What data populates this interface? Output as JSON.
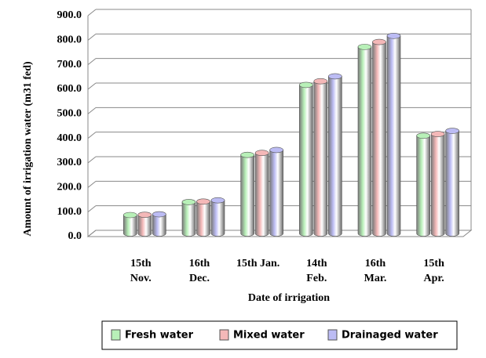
{
  "chart_data": {
    "type": "bar3d",
    "y_label": "Amount of irrigation water (m31 fed)",
    "x_label": "Date of irrigation",
    "categories": [
      "15th\nNov.",
      "16th\nDec.",
      "15th Jan.",
      "14th\nFeb.",
      "16th\nMar.",
      "15th\nApr."
    ],
    "series": [
      {
        "name": "Fresh water",
        "color": "#b8f0b8",
        "values": [
          75,
          128,
          320,
          605,
          760,
          398
        ]
      },
      {
        "name": "Mixed water",
        "color": "#f4b8b8",
        "values": [
          76,
          130,
          328,
          620,
          780,
          405
        ]
      },
      {
        "name": "Drainaged water",
        "color": "#bcbcf4",
        "values": [
          78,
          135,
          340,
          640,
          805,
          418
        ]
      }
    ],
    "ylim": [
      0,
      900
    ],
    "yticks": [
      {
        "value": 0,
        "label": "0.0"
      },
      {
        "value": 100,
        "label": "100.0"
      },
      {
        "value": 200,
        "label": "200.0"
      },
      {
        "value": 300,
        "label": "300.0"
      },
      {
        "value": 400,
        "label": "400.0"
      },
      {
        "value": 500,
        "label": "500.0"
      },
      {
        "value": 600,
        "label": "600.0"
      },
      {
        "value": 700,
        "label": "700.0"
      },
      {
        "value": 800,
        "label": "800.0"
      },
      {
        "value": 900,
        "label": "900.0"
      }
    ],
    "grid": true,
    "legend": "bottom"
  }
}
